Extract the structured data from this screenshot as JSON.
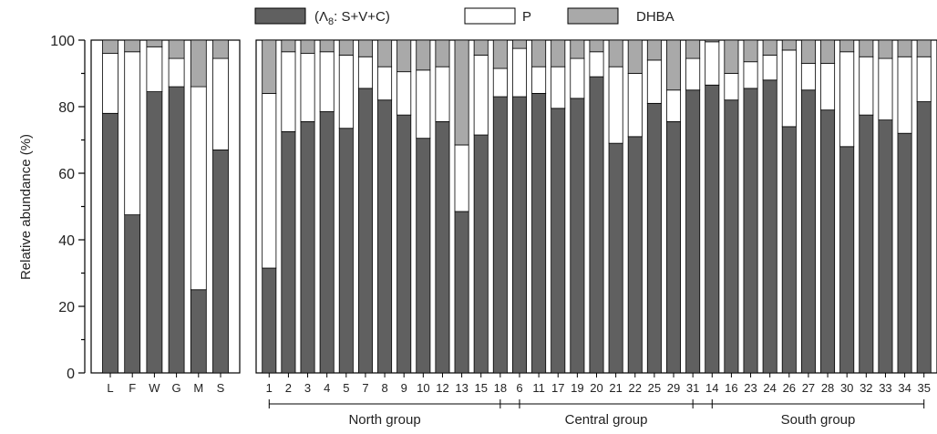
{
  "chart_data": {
    "type": "bar",
    "stacked": true,
    "ylabel": "Relative abundance (%)",
    "ylim": [
      0,
      100
    ],
    "yticks": [
      "0",
      "20",
      "40",
      "60",
      "80",
      "100"
    ],
    "legend": {
      "placement": "top",
      "entries": [
        {
          "label_pre": "(Λ",
          "label_sub": "8",
          "label_post": ": S+V+C)",
          "color": "#606060"
        },
        {
          "label": "P",
          "color": "#ffffff"
        },
        {
          "label": "DHBA",
          "color": "#a9a9a9"
        }
      ]
    },
    "series": [
      {
        "key": "svc",
        "color": "#606060"
      },
      {
        "key": "p",
        "color": "#ffffff"
      },
      {
        "key": "dhba",
        "color": "#a9a9a9"
      }
    ],
    "panels": [
      {
        "categories": [
          "L",
          "F",
          "W",
          "G",
          "M",
          "S"
        ],
        "svc": [
          78,
          47.5,
          84.5,
          86,
          25,
          67
        ],
        "p": [
          18,
          49,
          13.5,
          8.5,
          61,
          27.5
        ],
        "dhba": [
          4,
          3.5,
          2,
          5.5,
          14,
          5.5
        ]
      },
      {
        "categories": [
          "1",
          "2",
          "3",
          "4",
          "5",
          "7",
          "8",
          "9",
          "10",
          "12",
          "13",
          "15",
          "18",
          "6",
          "11",
          "17",
          "19",
          "20",
          "21",
          "22",
          "25",
          "29",
          "31",
          "14",
          "16",
          "23",
          "24",
          "26",
          "27",
          "28",
          "30",
          "32",
          "33",
          "34",
          "35"
        ],
        "svc": [
          31.5,
          72.5,
          75.5,
          78.5,
          73.5,
          85.5,
          82,
          77.5,
          70.5,
          75.5,
          48.5,
          71.5,
          83,
          83,
          84,
          79.5,
          82.5,
          89,
          69,
          71,
          81,
          75.5,
          85,
          86.5,
          82,
          85.5,
          88,
          74,
          85,
          79,
          68,
          77.5,
          76,
          72,
          81.5
        ],
        "p": [
          52.5,
          24,
          20.5,
          18,
          22,
          9.5,
          10,
          13,
          20.5,
          16.5,
          20,
          24,
          8.5,
          14.5,
          8,
          12.5,
          12,
          7.5,
          23,
          19,
          13,
          9.5,
          9.5,
          13,
          8,
          8,
          7.5,
          23,
          8,
          14,
          28.5,
          17.5,
          18.5,
          23,
          13.5
        ],
        "dhba": [
          16,
          3.5,
          4,
          3.5,
          4.5,
          5,
          8,
          9.5,
          9,
          8,
          31.5,
          4.5,
          8.5,
          2.5,
          8,
          8,
          5.5,
          3.5,
          8,
          10,
          6,
          15,
          5.5,
          0.5,
          10,
          6.5,
          4.5,
          3,
          7,
          7,
          3.5,
          5,
          5.5,
          5,
          5
        ]
      }
    ],
    "groups": [
      {
        "label": "North group",
        "from": 0,
        "to": 12
      },
      {
        "label": "Central group",
        "from": 13,
        "to": 22
      },
      {
        "label": "South group",
        "from": 23,
        "to": 34
      }
    ]
  }
}
